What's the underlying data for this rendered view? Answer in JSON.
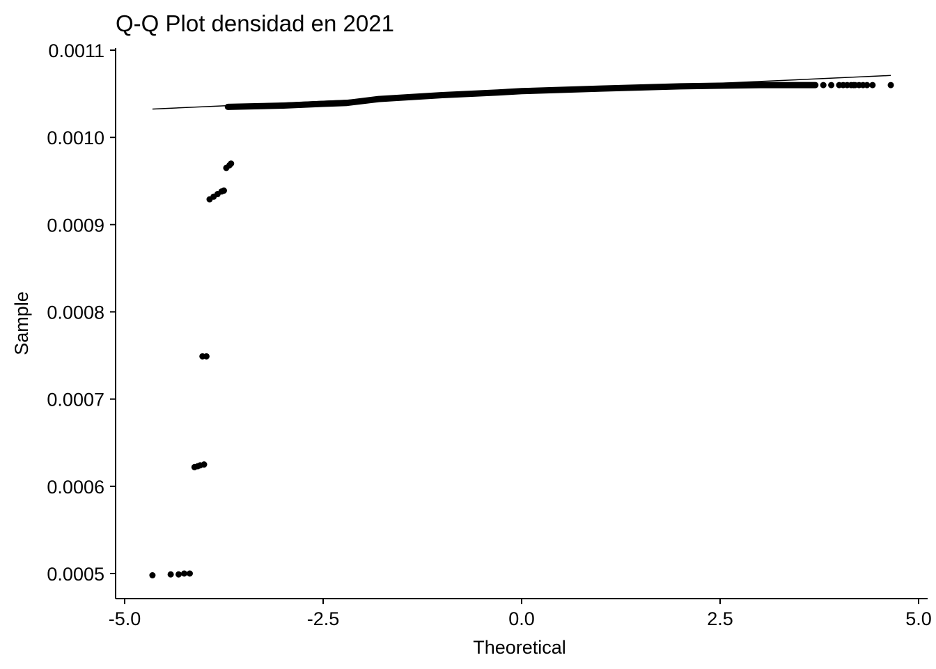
{
  "chart_data": {
    "type": "scatter",
    "title": "Q-Q Plot densidad en 2021",
    "xlabel": "Theoretical",
    "ylabel": "Sample",
    "xlim": [
      -5.0,
      5.0
    ],
    "ylim": [
      0.00049,
      0.0011
    ],
    "x_ticks": [
      -5.0,
      -2.5,
      0.0,
      2.5,
      5.0
    ],
    "x_tick_labels": [
      "-5.0",
      "-2.5",
      "0.0",
      "2.5",
      "5.0"
    ],
    "y_ticks": [
      0.0005,
      0.0006,
      0.0007,
      0.0008,
      0.0009,
      0.001,
      0.0011
    ],
    "y_tick_labels": [
      "0.0005",
      "0.0006",
      "0.0007",
      "0.0008",
      "0.0009",
      "0.0010",
      "0.0011"
    ],
    "grid": false,
    "point_color": "#000000",
    "reference_line": {
      "x": [
        -4.65,
        4.65
      ],
      "y": [
        0.0010325,
        0.001071
      ]
    },
    "main_band": {
      "x": [
        -3.7,
        -3.0,
        -2.5,
        -2.2,
        -1.8,
        -1.0,
        -0.3,
        0.0,
        1.0,
        2.0,
        3.0,
        3.7
      ],
      "y": [
        0.001035,
        0.0010365,
        0.0010385,
        0.0010395,
        0.001044,
        0.0010485,
        0.0010515,
        0.001053,
        0.001056,
        0.0010585,
        0.00106,
        0.00106
      ]
    },
    "points": {
      "x": [
        -4.65,
        -4.42,
        -4.32,
        -4.25,
        -4.18,
        -4.12,
        -4.08,
        -4.05,
        -4.0,
        -4.02,
        -3.97,
        -3.93,
        -3.88,
        -3.83,
        -3.78,
        -3.75,
        -3.72,
        -3.68,
        -3.66,
        3.8,
        3.9,
        4.0,
        4.05,
        4.1,
        4.15,
        4.18,
        4.2,
        4.25,
        4.3,
        4.35,
        4.42,
        4.65
      ],
      "y": [
        0.000498,
        0.000499,
        0.000499,
        0.0005,
        0.0005,
        0.000622,
        0.000623,
        0.000624,
        0.000625,
        0.000749,
        0.000749,
        0.000929,
        0.000932,
        0.000935,
        0.000938,
        0.000939,
        0.000965,
        0.000968,
        0.00097,
        0.00106,
        0.00106,
        0.00106,
        0.00106,
        0.00106,
        0.00106,
        0.00106,
        0.00106,
        0.00106,
        0.00106,
        0.00106,
        0.00106,
        0.00106
      ]
    }
  }
}
